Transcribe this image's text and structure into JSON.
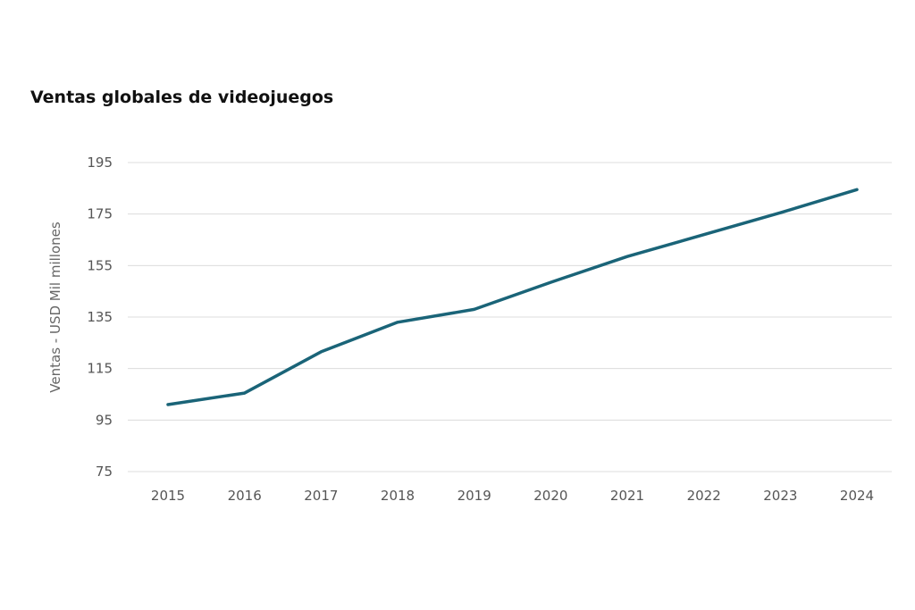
{
  "chart_data": {
    "type": "line",
    "title": "Ventas globales de videojuegos",
    "xlabel": "",
    "ylabel": "Ventas - USD Mil millones",
    "categories": [
      "2015",
      "2016",
      "2017",
      "2018",
      "2019",
      "2020",
      "2021",
      "2022",
      "2023",
      "2024"
    ],
    "series": [
      {
        "values": [
          101,
          105.5,
          121.5,
          133,
          138,
          148.5,
          158.5,
          167,
          175.5,
          184.5
        ],
        "color": "#1a6478"
      }
    ],
    "yticks": [
      75,
      95,
      115,
      135,
      155,
      175,
      195
    ],
    "ylim": [
      75,
      195
    ],
    "grid": true,
    "legend": "none"
  }
}
